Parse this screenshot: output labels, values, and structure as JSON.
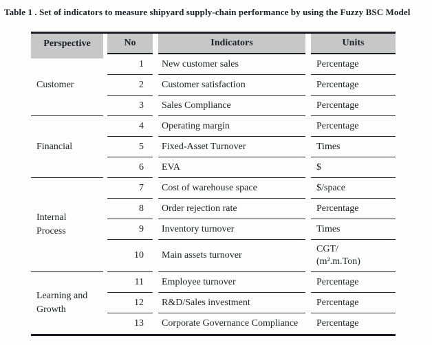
{
  "title": "Table 1 . Set of indicators to measure shipyard supply-chain performance by using the Fuzzy BSC Model",
  "colors": {
    "header_background": "#c7c7c7",
    "text": "#22252b",
    "rule_lines": "#1b1e24",
    "page_background": "#fdfdfd"
  },
  "table": {
    "headers": [
      "Perspective",
      "No",
      "Indicators",
      "Units"
    ],
    "groups": [
      {
        "perspective": "Customer",
        "rows": [
          {
            "no": "1",
            "indicator": "New customer sales",
            "unit": "Percentage"
          },
          {
            "no": "2",
            "indicator": "Customer satisfaction",
            "unit": "Percentage"
          },
          {
            "no": "3",
            "indicator": "Sales Compliance",
            "unit": "Percentage"
          }
        ]
      },
      {
        "perspective": "Financial",
        "rows": [
          {
            "no": "4",
            "indicator": "Operating margin",
            "unit": "Percentage"
          },
          {
            "no": "5",
            "indicator": "Fixed-Asset Turnover",
            "unit": "Times"
          },
          {
            "no": "6",
            "indicator": "EVA",
            "unit": "$"
          }
        ]
      },
      {
        "perspective": "Internal Process",
        "rows": [
          {
            "no": "7",
            "indicator": "Cost of warehouse space",
            "unit": "$/space"
          },
          {
            "no": "8",
            "indicator": "Order rejection rate",
            "unit": "Percentage"
          },
          {
            "no": "9",
            "indicator": "Inventory turnover",
            "unit": "Times"
          },
          {
            "no": "10",
            "indicator": "Main assets turnover",
            "unit": "CGT/\n(m².m.Ton)"
          }
        ]
      },
      {
        "perspective": "Learning and Growth",
        "rows": [
          {
            "no": "11",
            "indicator": "Employee turnover",
            "unit": "Percentage"
          },
          {
            "no": "12",
            "indicator": "R&D/Sales investment",
            "unit": "Percentage"
          },
          {
            "no": "13",
            "indicator": "Corporate Governance Compliance",
            "unit": "Percentage"
          }
        ]
      }
    ]
  }
}
